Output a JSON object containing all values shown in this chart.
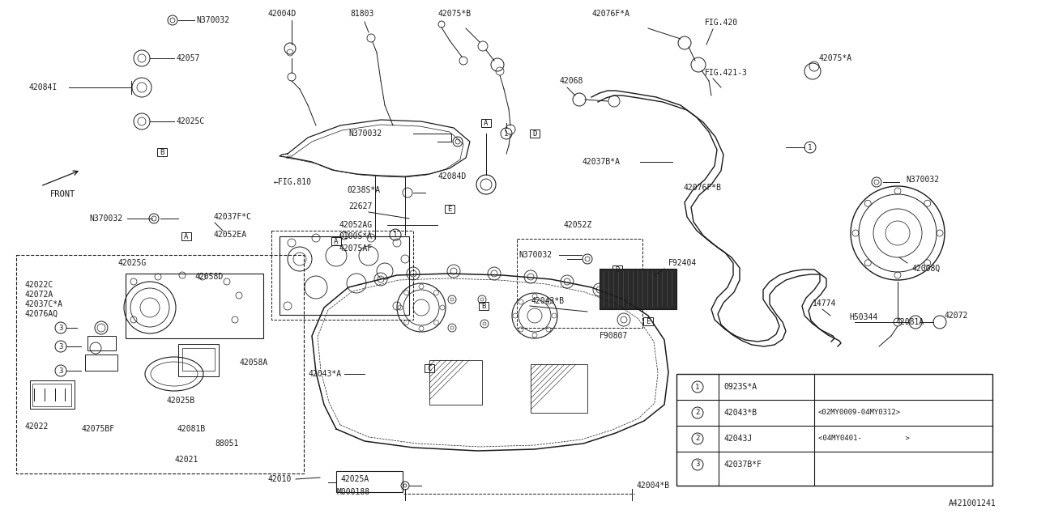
{
  "bg_color": "#ffffff",
  "line_color": "#1a1a1a",
  "fig_id": "A421001241",
  "legend": [
    {
      "num": "1",
      "part": "0923S*A",
      "note": ""
    },
    {
      "num": "2",
      "part": "42043*B",
      "note": "<02MY0009-04MY0312>"
    },
    {
      "num": "2",
      "part": "42043J",
      "note": "<04MY0401-          >"
    },
    {
      "num": "3",
      "part": "42037B*F",
      "note": ""
    }
  ]
}
